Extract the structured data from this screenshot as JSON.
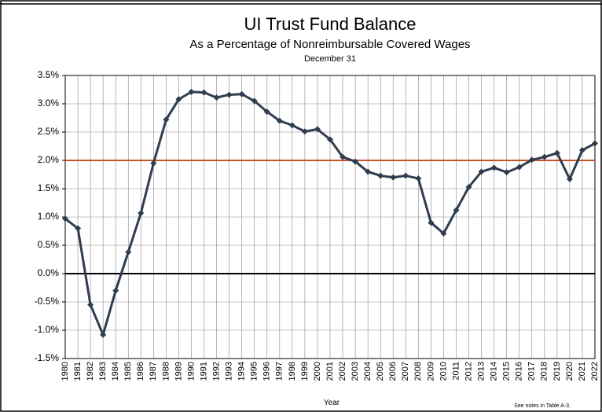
{
  "chart_data": {
    "type": "line",
    "title": "UI Trust Fund Balance",
    "subtitle": "As a Percentage of Nonreimbursable Covered Wages",
    "subtitle2": "December 31",
    "x_label": "Year",
    "note": "See notes  in Table A-3.",
    "categories": [
      "1980",
      "1981",
      "1982",
      "1983",
      "1984",
      "1985",
      "1986",
      "1987",
      "1988",
      "1989",
      "1990",
      "1991",
      "1992",
      "1993",
      "1994",
      "1995",
      "1996",
      "1997",
      "1998",
      "1999",
      "2000",
      "2001",
      "2002",
      "2003",
      "2004",
      "2005",
      "2006",
      "2007",
      "2008",
      "2009",
      "2010",
      "2011",
      "2012",
      "2013",
      "2014",
      "2015",
      "2016",
      "2017",
      "2018",
      "2019",
      "2020",
      "2021",
      "2022"
    ],
    "series": [
      {
        "name": "UI Trust Fund Balance",
        "color": "#2f3d4f",
        "values": [
          0.97,
          0.8,
          -0.55,
          -1.08,
          -0.3,
          0.38,
          1.07,
          1.95,
          2.72,
          3.08,
          3.21,
          3.2,
          3.11,
          3.16,
          3.17,
          3.05,
          2.86,
          2.7,
          2.62,
          2.51,
          2.55,
          2.37,
          2.06,
          1.98,
          1.8,
          1.73,
          1.7,
          1.73,
          1.68,
          0.9,
          0.71,
          1.12,
          1.53,
          1.8,
          1.87,
          1.79,
          1.88,
          2.01,
          2.06,
          2.13,
          1.67,
          2.18,
          2.3
        ]
      }
    ],
    "ylim": [
      -1.5,
      3.5
    ],
    "yticks": [
      {
        "value": -1.5,
        "label": "-1.5%"
      },
      {
        "value": -1.0,
        "label": "-1.0%"
      },
      {
        "value": -0.5,
        "label": "-0.5%"
      },
      {
        "value": 0,
        "label": "0.0%"
      },
      {
        "value": 0.5,
        "label": "0.5%"
      },
      {
        "value": 1.0,
        "label": "1.0%"
      },
      {
        "value": 1.5,
        "label": "1.5%"
      },
      {
        "value": 2.0,
        "label": "2.0%"
      },
      {
        "value": 2.5,
        "label": "2.5%"
      },
      {
        "value": 3.0,
        "label": "3.0%"
      },
      {
        "value": 3.5,
        "label": "3.5%"
      }
    ],
    "grid": true,
    "zero_line_color": "#000000",
    "reference_lines": [
      {
        "value": 2.0,
        "color": "#c5542c"
      }
    ]
  }
}
